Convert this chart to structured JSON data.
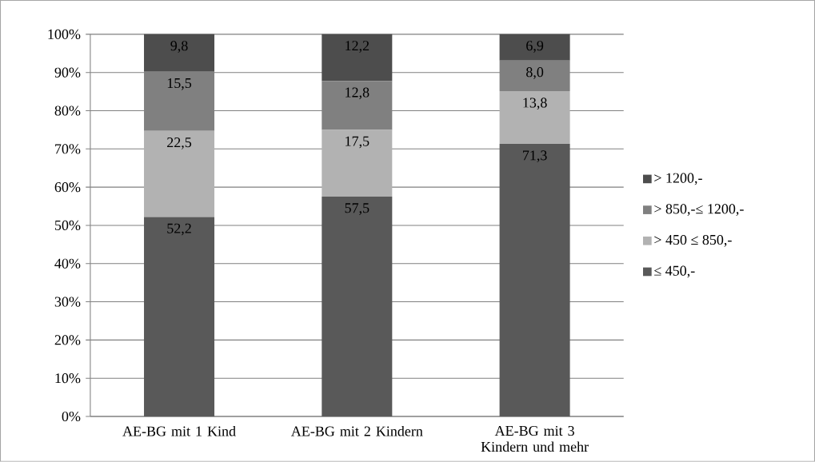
{
  "chart_data": {
    "type": "bar",
    "stacked": true,
    "categories": [
      "AE-BG mit 1 Kind",
      "AE-BG mit 2 Kindern",
      "AE-BG mit 3 Kindern und mehr"
    ],
    "series": [
      {
        "name": "≤ 450,-",
        "color": "#595959",
        "values": [
          52.2,
          57.5,
          71.3
        ],
        "value_labels": [
          "52,2",
          "57,5",
          "71,3"
        ]
      },
      {
        "name": "> 450 ≤ 850,-",
        "color": "#b2b2b2",
        "values": [
          22.5,
          17.5,
          13.8
        ],
        "value_labels": [
          "22,5",
          "17,5",
          "13,8"
        ]
      },
      {
        "name": "> 850,-≤ 1200,-",
        "color": "#808080",
        "values": [
          15.5,
          12.8,
          8.0
        ],
        "value_labels": [
          "15,5",
          "12,8",
          "8,0"
        ]
      },
      {
        "name": "> 1200,-",
        "color": "#4d4d4d",
        "values": [
          9.8,
          12.2,
          6.9
        ],
        "value_labels": [
          "9,8",
          "12,2",
          "6,9"
        ]
      }
    ],
    "ylim": [
      0,
      100
    ],
    "yticks": [
      {
        "value": 0,
        "label": "0%"
      },
      {
        "value": 10,
        "label": "10%"
      },
      {
        "value": 20,
        "label": "20%"
      },
      {
        "value": 30,
        "label": "30%"
      },
      {
        "value": 40,
        "label": "40%"
      },
      {
        "value": 50,
        "label": "50%"
      },
      {
        "value": 60,
        "label": "60%"
      },
      {
        "value": 70,
        "label": "70%"
      },
      {
        "value": 80,
        "label": "80%"
      },
      {
        "value": 90,
        "label": "90%"
      },
      {
        "value": 100,
        "label": "100%"
      }
    ],
    "grid": "y",
    "legend": "right"
  }
}
